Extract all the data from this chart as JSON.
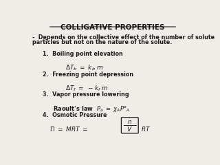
{
  "title": "COLLIGATIVE PROPERTIES",
  "background_color": "#f0ede8",
  "text_color": "#1a1a1a",
  "subtitle_line1": "-  Depends on the collective effect of the number of solute",
  "subtitle_line2": "particles but not on the nature of the solute.",
  "item1_label": "1.  Boiling point elevation",
  "item2_label": "2.  Freezing point depression",
  "item3_label": "3.  Vapor pressure lowering",
  "item4_label": "4.  Osmotic Pressure"
}
